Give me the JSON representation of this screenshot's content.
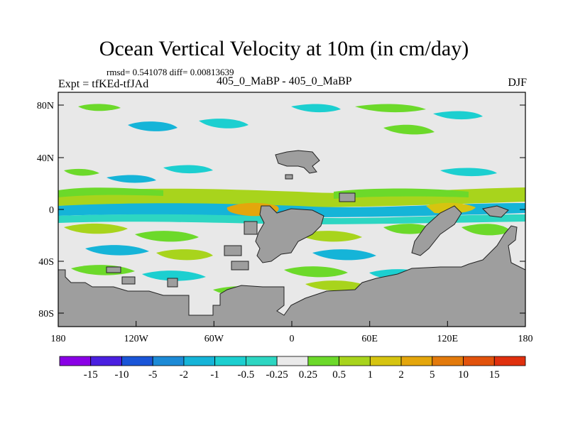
{
  "title": "Ocean Vertical Velocity at 10m (in cm/day)",
  "stats": "rmsd= 0.541078 diff= 0.00813639",
  "expt": "Expt = tfKEd-tfJAd",
  "center_label": "405_0_MaBP - 405_0_MaBP",
  "season": "DJF",
  "axes": {
    "x_ticks": [
      "180",
      "120W",
      "60W",
      "0",
      "60E",
      "120E",
      "180"
    ],
    "y_ticks": [
      "80N",
      "40N",
      "0",
      "40S",
      "80S"
    ]
  },
  "colorbar": {
    "labels": [
      "-15",
      "-10",
      "-5",
      "-2",
      "-1",
      "-0.5",
      "-0.25",
      "0.25",
      "0.5",
      "1",
      "2",
      "5",
      "10",
      "15"
    ],
    "colors": [
      "#8a00e6",
      "#4a1fe0",
      "#1a55d8",
      "#1c8ad6",
      "#15b4d8",
      "#1ccfd0",
      "#2dd6c2",
      "#eaeaea",
      "#6cd92a",
      "#a8d41c",
      "#d6c410",
      "#e4a60c",
      "#e37a0c",
      "#e2520c",
      "#e0300e"
    ]
  },
  "colors": {
    "land": "#9e9e9e",
    "ocean_neutral": "#e6e6e6"
  }
}
